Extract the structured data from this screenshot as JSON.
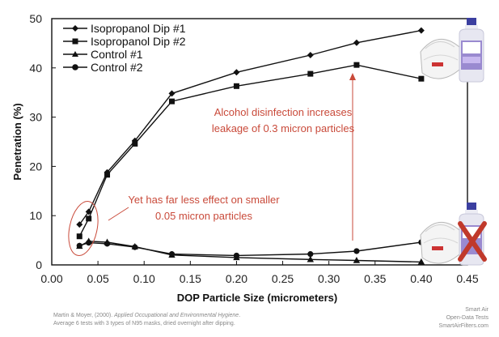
{
  "chart_data": {
    "type": "line",
    "xlabel": "DOP Particle Size (micrometers)",
    "ylabel": "Penetration (%)",
    "xlim": [
      0.0,
      0.45
    ],
    "ylim": [
      0,
      50
    ],
    "xticks": [
      "0.00",
      "0.05",
      "0.10",
      "0.15",
      "0.20",
      "0.25",
      "0.30",
      "0.35",
      "0.40",
      "0.45"
    ],
    "yticks": [
      "0",
      "10",
      "20",
      "30",
      "40",
      "50"
    ],
    "legend_position": "top-left",
    "grid": false,
    "series": [
      {
        "name": "Isopropanol Dip #1",
        "marker": "diamond",
        "x": [
          0.03,
          0.04,
          0.06,
          0.09,
          0.13,
          0.2,
          0.28,
          0.33,
          0.4
        ],
        "y": [
          8.2,
          10.8,
          18.8,
          25.2,
          34.8,
          39.1,
          42.6,
          45.1,
          47.6
        ]
      },
      {
        "name": "Isopropanol Dip #2",
        "marker": "square",
        "x": [
          0.03,
          0.04,
          0.06,
          0.09,
          0.13,
          0.2,
          0.28,
          0.33,
          0.4
        ],
        "y": [
          5.8,
          9.4,
          18.3,
          24.6,
          33.2,
          36.3,
          38.8,
          40.6,
          37.8
        ]
      },
      {
        "name": "Control #1",
        "marker": "triangle",
        "x": [
          0.03,
          0.04,
          0.06,
          0.09,
          0.13,
          0.2,
          0.28,
          0.33,
          0.4
        ],
        "y": [
          3.8,
          4.8,
          4.6,
          3.7,
          2.0,
          1.5,
          1.1,
          0.9,
          0.6
        ]
      },
      {
        "name": "Control #2",
        "marker": "circle",
        "x": [
          0.03,
          0.04,
          0.06,
          0.09,
          0.13,
          0.2,
          0.28,
          0.33,
          0.4
        ],
        "y": [
          3.9,
          4.5,
          4.3,
          3.6,
          2.2,
          1.9,
          2.2,
          2.8,
          4.6
        ]
      }
    ],
    "annotations": {
      "alcohol": [
        "Alcohol disinfection increases",
        "leakage of 0.3 micron particles"
      ],
      "smaller": [
        "Yet has far less effect on smaller",
        "0.05 micron particles"
      ]
    },
    "footer_left": {
      "line1_plain": "Martin & Moyer, (2000). ",
      "line1_italic": "Applied Occupational and Environmental Hygiene",
      "line1_end": ".",
      "line2": "Average 6 tests with 3 types of N95 masks, dried overnight after dipping."
    },
    "footer_right": [
      "Smart Air",
      "Open-Data Tests",
      "SmartAirFilters.com"
    ],
    "colors": {
      "series": "#111111",
      "annotation": "#c94a3a",
      "cross": "#c0392b"
    }
  }
}
